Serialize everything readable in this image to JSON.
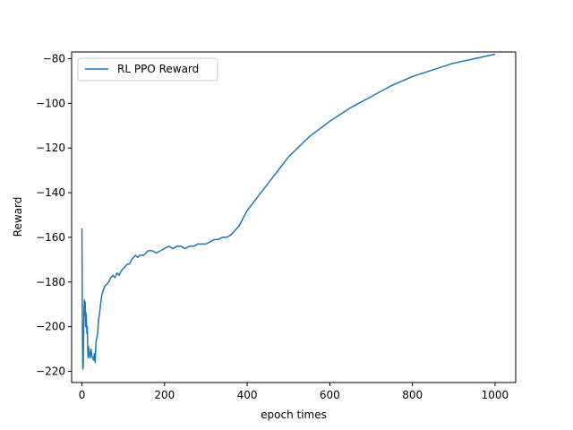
{
  "chart_data": {
    "type": "line",
    "title": "",
    "xlabel": "epoch times",
    "ylabel": "Reward",
    "xlim": [
      -25,
      1050
    ],
    "ylim": [
      -225,
      -77
    ],
    "xticks": [
      0,
      200,
      400,
      600,
      800,
      1000
    ],
    "yticks": [
      -220,
      -200,
      -180,
      -160,
      -140,
      -120,
      -100,
      -80
    ],
    "xtick_labels": [
      "0",
      "200",
      "400",
      "600",
      "800",
      "1000"
    ],
    "ytick_labels": [
      "−220",
      "−200",
      "−180",
      "−160",
      "−140",
      "−120",
      "−100",
      "−80"
    ],
    "grid": false,
    "legend": {
      "placement": "upper-left",
      "entries": [
        "RL PPO Reward"
      ]
    },
    "series": [
      {
        "name": "RL PPO Reward",
        "color": "#1f77b4",
        "x": [
          0,
          1,
          2,
          3,
          4,
          5,
          6,
          7,
          8,
          9,
          10,
          11,
          12,
          13,
          14,
          15,
          16,
          18,
          20,
          22,
          24,
          26,
          28,
          30,
          32,
          34,
          36,
          38,
          40,
          42,
          45,
          48,
          51,
          55,
          60,
          65,
          70,
          75,
          80,
          85,
          90,
          95,
          100,
          105,
          110,
          115,
          120,
          125,
          130,
          135,
          140,
          150,
          160,
          170,
          180,
          190,
          200,
          210,
          220,
          230,
          240,
          250,
          260,
          270,
          280,
          290,
          300,
          310,
          320,
          330,
          340,
          350,
          360,
          380,
          400,
          450,
          500,
          550,
          600,
          650,
          700,
          750,
          800,
          850,
          900,
          950,
          1000
        ],
        "y": [
          -156,
          -200,
          -219,
          -218,
          -205,
          -192,
          -188,
          -195,
          -189,
          -200,
          -194,
          -198,
          -203,
          -200,
          -210,
          -214,
          -209,
          -212,
          -214,
          -210,
          -213,
          -214,
          -215,
          -212,
          -216,
          -207,
          -205,
          -203,
          -197,
          -195,
          -190,
          -186,
          -184,
          -182,
          -181,
          -180,
          -178,
          -177,
          -178,
          -176,
          -177,
          -175,
          -174,
          -173,
          -172,
          -172,
          -170,
          -169,
          -168,
          -169,
          -168,
          -168,
          -166,
          -166,
          -167,
          -166,
          -165,
          -164,
          -165,
          -164,
          -164,
          -165,
          -164,
          -164,
          -163,
          -163,
          -163,
          -162,
          -161,
          -161,
          -160,
          -160,
          -159,
          -155,
          -148,
          -136,
          -124,
          -115,
          -108,
          -102,
          -97,
          -92,
          -88,
          -85,
          -82,
          -80,
          -78
        ]
      }
    ]
  }
}
